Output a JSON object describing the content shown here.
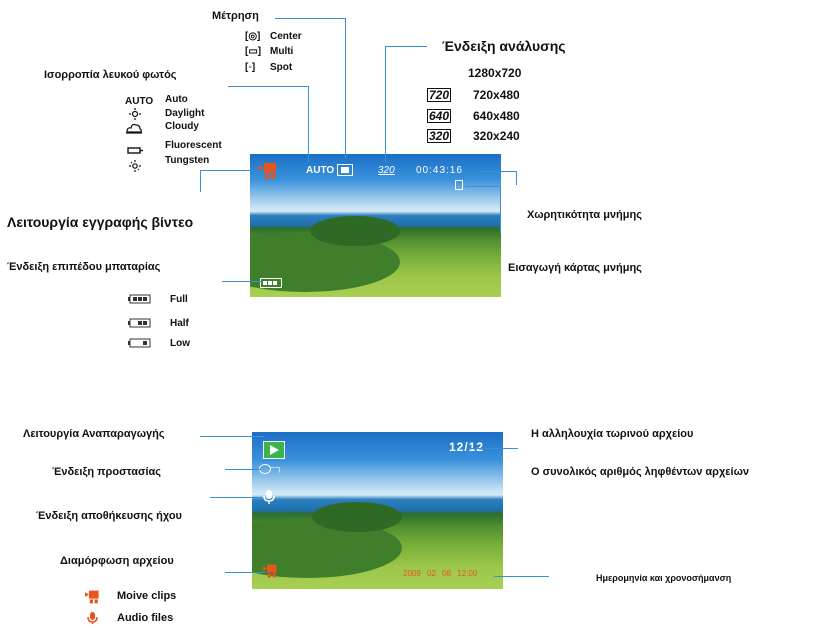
{
  "top": {
    "metering": {
      "title": "Μέτρηση",
      "options": [
        {
          "icon": "[◎]",
          "label": "Center"
        },
        {
          "icon": "[▭]",
          "label": "Multi"
        },
        {
          "icon": "[◦]",
          "label": "Spot"
        }
      ]
    },
    "white_balance": {
      "title": "Ισορροπία λευκού φωτός",
      "options": [
        {
          "icon": "AUTO",
          "label": "Auto"
        },
        {
          "icon": "sun-icon",
          "label": "Daylight"
        },
        {
          "icon": "cloud-icon",
          "label": "Cloudy"
        },
        {
          "icon": "fluorescent-icon",
          "label": "Fluorescent"
        },
        {
          "icon": "tungsten-icon",
          "label": "Tungsten"
        }
      ]
    },
    "resolution": {
      "title": "Ένδειξη ανάλυσης",
      "options": [
        {
          "icon": "",
          "label": "1280x720"
        },
        {
          "icon": "720",
          "label": "720x480"
        },
        {
          "icon": "640",
          "label": "640x480"
        },
        {
          "icon": "320",
          "label": "320x240"
        }
      ]
    },
    "video_mode": {
      "title": "Λειτουργία εγγραφής βίντεο"
    },
    "battery": {
      "title": "Ένδειξη επιπέδου μπαταρίας",
      "options": [
        {
          "icon": "battery-full-icon",
          "label": "Full"
        },
        {
          "icon": "battery-half-icon",
          "label": "Half"
        },
        {
          "icon": "battery-low-icon",
          "label": "Low"
        }
      ]
    },
    "memory_capacity": {
      "title": "Χωρητικότητα μνήμης"
    },
    "card_inserted": {
      "title": "Εισαγωγή κάρτας μνήμης"
    },
    "screen": {
      "wb": "AUTO",
      "res": "320",
      "time": "00:43:16"
    }
  },
  "bottom": {
    "playback": {
      "title": "Λειτουργία Αναπαραγωγής"
    },
    "protect": {
      "title": "Ένδειξη προστασίας"
    },
    "voice_memo": {
      "title": "Ένδειξη αποθήκευσης ήχου"
    },
    "file_format": {
      "title": "Διαμόρφωση αρχείου",
      "options": [
        {
          "icon": "movie-clip-icon",
          "label": "Moive clips"
        },
        {
          "icon": "audio-file-icon",
          "label": "Audio files"
        }
      ]
    },
    "current_file": {
      "title": "Η αλληλουχία τωρινού αρχείου"
    },
    "total_files": {
      "title": "Ο συνολικός αριθμός ληφθέντων αρχείων"
    },
    "datetime": {
      "title": "Ημερομηνία και χρονοσήμανση"
    },
    "screen": {
      "counter": "12/12",
      "stamp": "2009 02 08 12:00"
    }
  },
  "colors": {
    "line": "#3b8fd6",
    "orange": "#e8541e",
    "green": "#39b54a"
  }
}
